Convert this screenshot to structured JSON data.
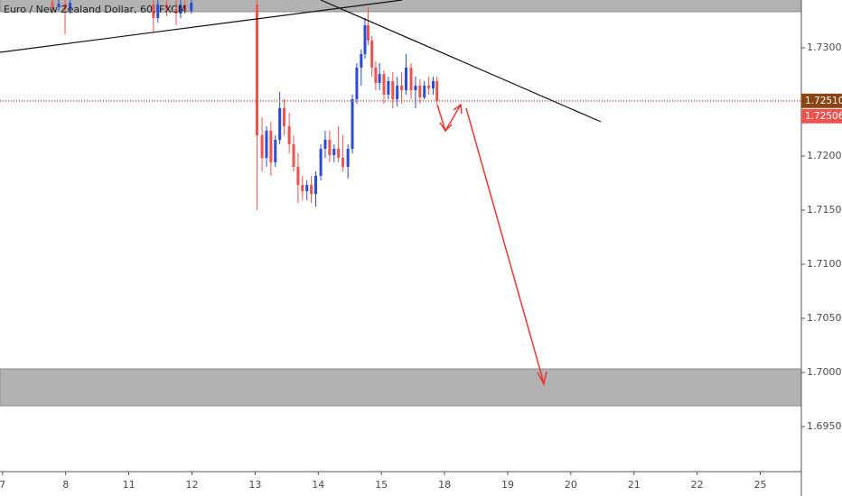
{
  "chart_data": {
    "type": "candlestick",
    "title": "Euro / New Zealand Dollar, 60, FXCM",
    "xlim": [
      -0.04,
      12.65
    ],
    "xticks": [
      {
        "value": 0,
        "label": "7"
      },
      {
        "value": 1,
        "label": "8"
      },
      {
        "value": 2,
        "label": "11"
      },
      {
        "value": 3,
        "label": "12"
      },
      {
        "value": 4,
        "label": "13"
      },
      {
        "value": 5,
        "label": "14"
      },
      {
        "value": 6,
        "label": "15"
      },
      {
        "value": 7,
        "label": "18"
      },
      {
        "value": 8,
        "label": "19"
      },
      {
        "value": 9,
        "label": "20"
      },
      {
        "value": 10,
        "label": "21"
      },
      {
        "value": 11,
        "label": "22"
      },
      {
        "value": 12,
        "label": "25"
      }
    ],
    "ylim": [
      1.690833,
      1.734417
    ],
    "yticks": [
      {
        "value": 1.695,
        "label": "1.69500"
      },
      {
        "value": 1.7,
        "label": "1.70000"
      },
      {
        "value": 1.705,
        "label": "1.70500"
      },
      {
        "value": 1.71,
        "label": "1.71000"
      },
      {
        "value": 1.715,
        "label": "1.71500"
      },
      {
        "value": 1.72,
        "label": "1.72000"
      },
      {
        "value": 1.73,
        "label": "1.73000"
      }
    ],
    "up_color": "#2a4bd7",
    "down_color": "#ef5350",
    "candles": {
      "x": [
        0.79,
        0.89,
        0.99,
        1.07,
        2.39,
        2.46,
        2.6,
        2.75,
        2.82,
        2.89,
        2.99,
        4.03,
        4.11,
        4.18,
        4.25,
        4.32,
        4.39,
        4.46,
        4.54,
        4.61,
        4.68,
        4.75,
        4.82,
        4.89,
        4.96,
        5.04,
        5.11,
        5.18,
        5.25,
        5.32,
        5.39,
        5.47,
        5.54,
        5.61,
        5.68,
        5.74,
        5.79,
        5.85,
        5.91,
        5.97,
        6.04,
        6.11,
        6.18,
        6.25,
        6.32,
        6.39,
        6.47,
        6.54,
        6.61,
        6.68,
        6.75,
        6.82,
        6.88
      ],
      "open": [
        1.73425,
        1.73375,
        1.73408,
        1.73358,
        1.734,
        1.73275,
        1.734,
        1.73358,
        1.73317,
        1.734,
        1.73342,
        1.734,
        1.72192,
        1.71983,
        1.72233,
        1.71942,
        1.7215,
        1.72442,
        1.72275,
        1.72108,
        1.719,
        1.71733,
        1.71675,
        1.71733,
        1.7165,
        1.71817,
        1.72067,
        1.7215,
        1.72008,
        1.72067,
        1.71983,
        1.719,
        1.72067,
        1.72525,
        1.72817,
        1.72942,
        1.73208,
        1.73067,
        1.72817,
        1.72675,
        1.72758,
        1.72567,
        1.72692,
        1.72525,
        1.7265,
        1.72608,
        1.72817,
        1.72608,
        1.7265,
        1.72542,
        1.7265,
        1.72625,
        1.72692
      ],
      "high": [
        1.73442,
        1.73442,
        1.73442,
        1.73442,
        1.73442,
        1.73442,
        1.73442,
        1.73442,
        1.73442,
        1.73442,
        1.73442,
        1.73442,
        1.72358,
        1.72275,
        1.72317,
        1.72192,
        1.72592,
        1.72525,
        1.724,
        1.72192,
        1.72025,
        1.71817,
        1.71775,
        1.71817,
        1.71858,
        1.72108,
        1.72233,
        1.72233,
        1.72108,
        1.72275,
        1.72192,
        1.72108,
        1.72567,
        1.72858,
        1.72983,
        1.73275,
        1.73375,
        1.73108,
        1.72875,
        1.72858,
        1.72792,
        1.72733,
        1.72775,
        1.72733,
        1.72775,
        1.72942,
        1.72858,
        1.72733,
        1.72708,
        1.72692,
        1.72733,
        1.72733,
        1.72733
      ],
      "low": [
        1.73317,
        1.73342,
        1.73125,
        1.73317,
        1.7315,
        1.73233,
        1.73292,
        1.73208,
        1.73275,
        1.73317,
        1.73317,
        1.715,
        1.71858,
        1.719,
        1.71817,
        1.719,
        1.72108,
        1.72192,
        1.72025,
        1.71858,
        1.71567,
        1.71592,
        1.71592,
        1.71567,
        1.71533,
        1.71775,
        1.71983,
        1.71942,
        1.71942,
        1.71942,
        1.71858,
        1.71792,
        1.72025,
        1.72483,
        1.7265,
        1.729,
        1.73025,
        1.72733,
        1.72608,
        1.72608,
        1.72483,
        1.72525,
        1.72442,
        1.72458,
        1.72483,
        1.72567,
        1.72525,
        1.72442,
        1.72483,
        1.72525,
        1.72567,
        1.72567,
        1.72483
      ],
      "close": [
        1.73375,
        1.73408,
        1.73358,
        1.73417,
        1.73275,
        1.734,
        1.73358,
        1.73317,
        1.734,
        1.73342,
        1.73417,
        1.72192,
        1.71983,
        1.72233,
        1.71942,
        1.7215,
        1.72442,
        1.72275,
        1.72108,
        1.719,
        1.71733,
        1.71675,
        1.71733,
        1.7165,
        1.71817,
        1.72067,
        1.7215,
        1.72008,
        1.72067,
        1.71983,
        1.719,
        1.72067,
        1.72525,
        1.72817,
        1.72942,
        1.73208,
        1.73067,
        1.72817,
        1.72675,
        1.72758,
        1.72567,
        1.72692,
        1.72525,
        1.7265,
        1.72608,
        1.72817,
        1.72608,
        1.7265,
        1.72542,
        1.7265,
        1.72625,
        1.72692,
        1.72506
      ]
    },
    "price_labels": [
      {
        "value": 1.7251,
        "label": "1.72510",
        "color": "#8a4514"
      },
      {
        "value": 1.72506,
        "label": "1.72506",
        "color": "#ef5350"
      }
    ]
  }
}
